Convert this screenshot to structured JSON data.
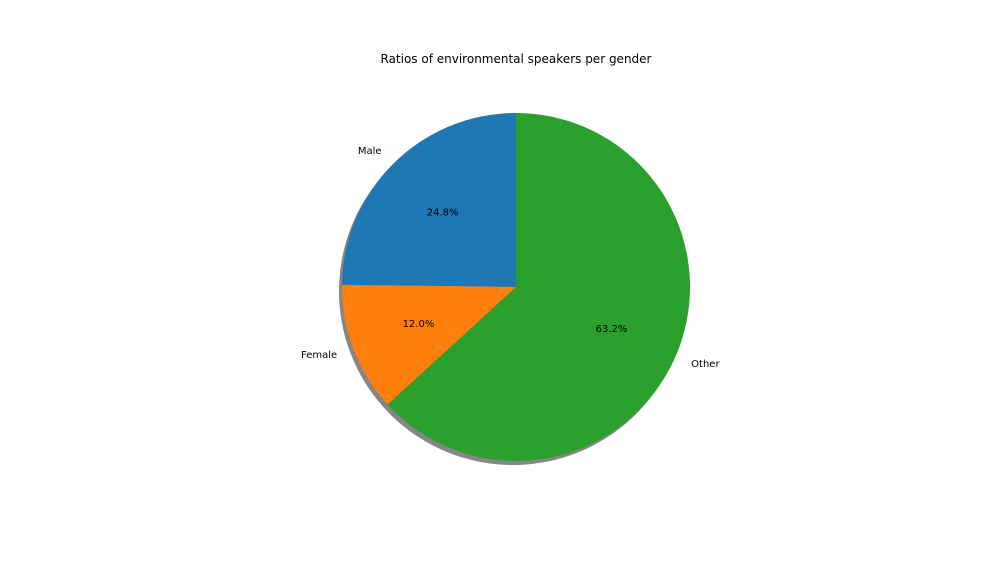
{
  "chart_data": {
    "type": "pie",
    "title": "Ratios of environmental speakers per gender",
    "categories": [
      "Male",
      "Female",
      "Other"
    ],
    "values": [
      24.8,
      12.0,
      63.2
    ],
    "percent_labels": [
      "24.8%",
      "12.0%",
      "63.2%"
    ],
    "colors": [
      "#1f77b4",
      "#ff7f0e",
      "#2ca02c"
    ],
    "start_angle_deg": 90,
    "direction": "counterclockwise",
    "shadow": true,
    "legend": "none"
  }
}
